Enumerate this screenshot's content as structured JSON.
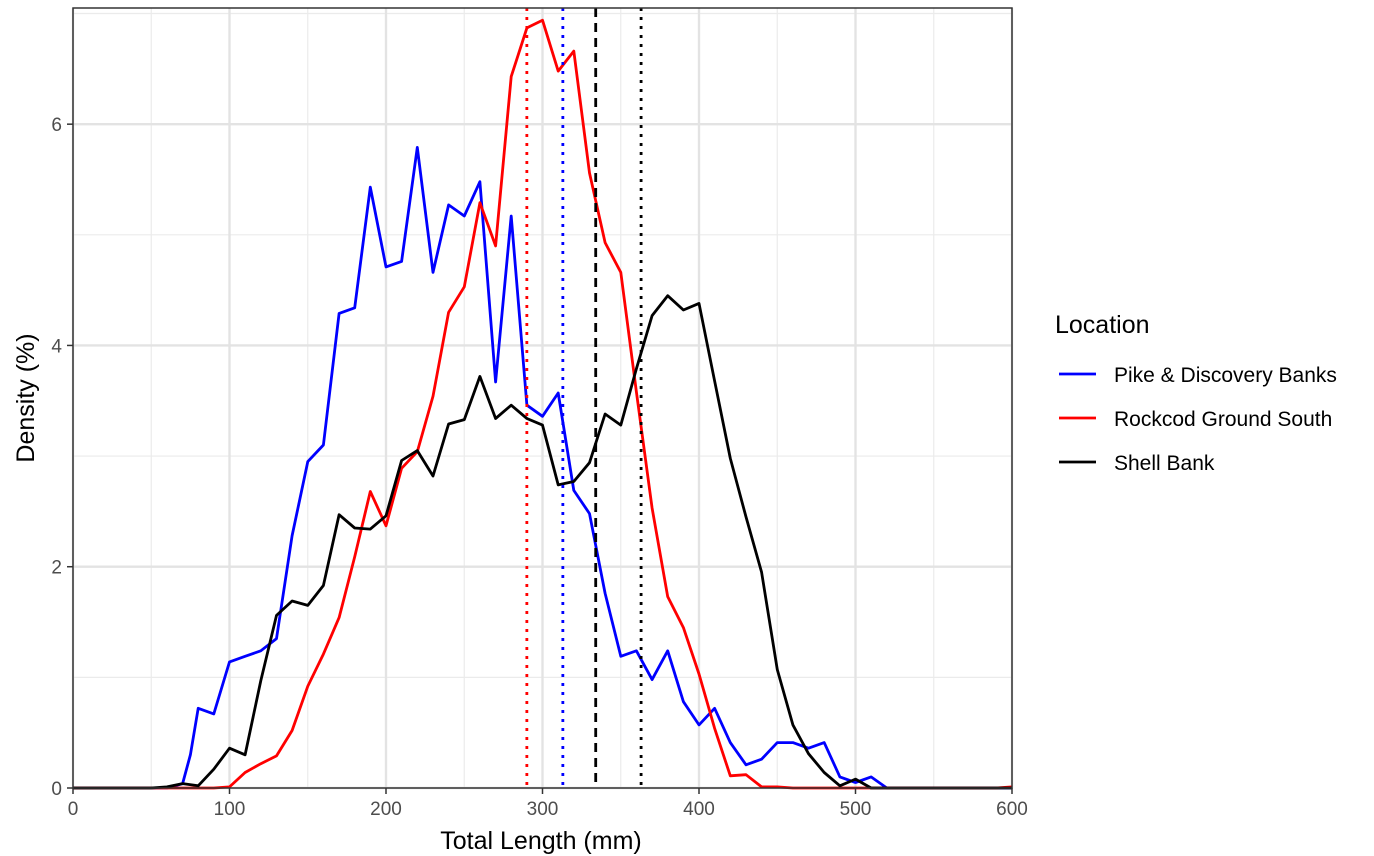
{
  "chart_data": {
    "type": "line",
    "xlabel": "Total Length (mm)",
    "ylabel": "Density (%)",
    "xlim": [
      0,
      600
    ],
    "ylim": [
      0,
      7.05
    ],
    "x_ticks": [
      0,
      100,
      200,
      300,
      400,
      500,
      600
    ],
    "y_ticks": [
      0,
      2,
      4,
      6
    ],
    "grid": true,
    "legend": {
      "title": "Location",
      "position": "right"
    },
    "series": [
      {
        "name": "Pike & Discovery Banks",
        "color": "#0000ff",
        "x": [
          0,
          10,
          20,
          30,
          40,
          50,
          60,
          70,
          75,
          80,
          90,
          100,
          110,
          120,
          130,
          140,
          150,
          160,
          170,
          180,
          190,
          200,
          210,
          220,
          230,
          240,
          250,
          260,
          270,
          280,
          290,
          300,
          310,
          320,
          330,
          340,
          350,
          360,
          370,
          380,
          390,
          400,
          410,
          420,
          430,
          440,
          450,
          460,
          470,
          480,
          490,
          500,
          510,
          520,
          530,
          540,
          550,
          560,
          570,
          580,
          590,
          600
        ],
        "y": [
          0,
          0,
          0,
          0,
          0,
          0,
          0,
          0.04,
          0.3,
          0.72,
          0.67,
          1.14,
          1.19,
          1.24,
          1.35,
          2.28,
          2.95,
          3.1,
          4.29,
          4.34,
          5.43,
          4.71,
          4.76,
          5.79,
          4.66,
          5.27,
          5.17,
          5.48,
          3.67,
          5.17,
          3.46,
          3.36,
          3.57,
          2.69,
          2.48,
          1.76,
          1.19,
          1.24,
          0.98,
          1.24,
          0.78,
          0.57,
          0.72,
          0.41,
          0.21,
          0.26,
          0.41,
          0.41,
          0.36,
          0.41,
          0.1,
          0.05,
          0.1,
          0,
          0,
          0,
          0,
          0,
          0,
          0,
          0,
          0
        ]
      },
      {
        "name": "Rockcod Ground South",
        "color": "#ff0000",
        "x": [
          0,
          10,
          20,
          30,
          40,
          50,
          60,
          70,
          80,
          90,
          100,
          110,
          120,
          130,
          140,
          150,
          160,
          170,
          180,
          190,
          200,
          210,
          220,
          230,
          240,
          250,
          260,
          270,
          280,
          290,
          300,
          310,
          320,
          330,
          340,
          350,
          360,
          370,
          380,
          390,
          400,
          410,
          420,
          430,
          440,
          450,
          460,
          470,
          480,
          490,
          500,
          510,
          520,
          530,
          540,
          550,
          560,
          570,
          580,
          590,
          600
        ],
        "y": [
          0,
          0,
          0,
          0,
          0,
          0,
          0,
          0,
          0,
          0,
          0.01,
          0.14,
          0.22,
          0.29,
          0.52,
          0.92,
          1.21,
          1.54,
          2.09,
          2.68,
          2.37,
          2.89,
          3.04,
          3.54,
          4.3,
          4.53,
          5.29,
          4.9,
          6.43,
          6.87,
          6.94,
          6.48,
          6.66,
          5.56,
          4.93,
          4.66,
          3.58,
          2.53,
          1.73,
          1.45,
          1.03,
          0.54,
          0.11,
          0.12,
          0.01,
          0.01,
          0,
          0,
          0,
          0,
          0,
          0,
          0,
          0,
          0,
          0,
          0,
          0,
          0,
          0,
          0.01
        ]
      },
      {
        "name": "Shell Bank",
        "color": "#000000",
        "x": [
          0,
          10,
          20,
          30,
          40,
          50,
          60,
          70,
          80,
          90,
          100,
          110,
          120,
          130,
          140,
          150,
          160,
          170,
          180,
          190,
          200,
          210,
          220,
          230,
          240,
          250,
          260,
          270,
          280,
          290,
          300,
          310,
          320,
          330,
          340,
          350,
          360,
          370,
          380,
          390,
          400,
          410,
          420,
          430,
          440,
          450,
          460,
          470,
          480,
          490,
          500,
          510,
          520,
          530,
          540,
          550,
          560,
          570,
          580,
          590,
          600
        ],
        "y": [
          0,
          0,
          0,
          0,
          0,
          0,
          0.01,
          0.04,
          0.02,
          0.17,
          0.36,
          0.3,
          0.97,
          1.56,
          1.69,
          1.65,
          1.83,
          2.47,
          2.35,
          2.34,
          2.46,
          2.96,
          3.05,
          2.82,
          3.29,
          3.33,
          3.72,
          3.34,
          3.46,
          3.34,
          3.28,
          2.74,
          2.77,
          2.94,
          3.38,
          3.28,
          3.79,
          4.27,
          4.45,
          4.32,
          4.38,
          3.68,
          2.98,
          2.45,
          1.95,
          1.07,
          0.57,
          0.31,
          0.14,
          0.02,
          0.08,
          0,
          0,
          0,
          0,
          0,
          0,
          0,
          0,
          0,
          0
        ]
      }
    ],
    "reference_lines": [
      {
        "series": "Rockcod Ground South",
        "x": 290,
        "style": "dotted",
        "color": "#ff0000"
      },
      {
        "series": "Pike & Discovery Banks",
        "x": 313,
        "style": "dotted",
        "color": "#0000ff"
      },
      {
        "series": "Shell Bank",
        "x": 334,
        "style": "dashed",
        "color": "#000000"
      },
      {
        "series": "Shell Bank",
        "x": 363,
        "style": "dotted",
        "color": "#000000"
      }
    ]
  }
}
